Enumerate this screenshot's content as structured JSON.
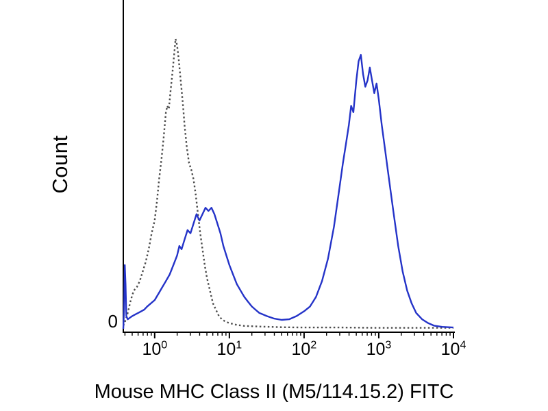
{
  "figure": {
    "background": "#ffffff",
    "axis_color": "#000000"
  },
  "chart_data": {
    "type": "line",
    "subtype": "flow-cytometry-histogram",
    "title": "",
    "xlabel": "Mouse MHC Class II (M5/114.15.2) FITC",
    "ylabel": "Count",
    "y_zero_label": "0",
    "x_scale": "log10",
    "x_range_log10": [
      -0.42,
      4.0
    ],
    "y_range": [
      0,
      100
    ],
    "grid": false,
    "legend": "none",
    "x_ticks": [
      {
        "base": "10",
        "exponent": "0",
        "log10": 0
      },
      {
        "base": "10",
        "exponent": "1",
        "log10": 1
      },
      {
        "base": "10",
        "exponent": "2",
        "log10": 2
      },
      {
        "base": "10",
        "exponent": "3",
        "log10": 3
      },
      {
        "base": "10",
        "exponent": "4",
        "log10": 4
      }
    ],
    "series": [
      {
        "name": "dotted-gray-curve",
        "color": "#4d4d4d",
        "line_style": "dotted",
        "points": [
          [
            -0.42,
            1
          ],
          [
            -0.4,
            2
          ],
          [
            -0.36,
            5
          ],
          [
            -0.32,
            9
          ],
          [
            -0.28,
            12
          ],
          [
            -0.24,
            13
          ],
          [
            -0.2,
            15
          ],
          [
            -0.16,
            18
          ],
          [
            -0.12,
            21
          ],
          [
            -0.08,
            25
          ],
          [
            -0.04,
            30
          ],
          [
            0.0,
            34
          ],
          [
            0.03,
            40
          ],
          [
            0.06,
            47
          ],
          [
            0.09,
            53
          ],
          [
            0.12,
            60
          ],
          [
            0.15,
            68
          ],
          [
            0.17,
            70
          ],
          [
            0.19,
            69
          ],
          [
            0.21,
            74
          ],
          [
            0.24,
            81
          ],
          [
            0.26,
            86
          ],
          [
            0.28,
            91
          ],
          [
            0.3,
            89
          ],
          [
            0.32,
            85
          ],
          [
            0.34,
            80
          ],
          [
            0.36,
            75
          ],
          [
            0.38,
            70
          ],
          [
            0.4,
            64
          ],
          [
            0.43,
            57
          ],
          [
            0.46,
            52
          ],
          [
            0.49,
            50
          ],
          [
            0.52,
            47
          ],
          [
            0.55,
            42
          ],
          [
            0.58,
            36
          ],
          [
            0.61,
            30
          ],
          [
            0.64,
            25
          ],
          [
            0.67,
            20
          ],
          [
            0.7,
            16
          ],
          [
            0.74,
            12
          ],
          [
            0.78,
            8
          ],
          [
            0.82,
            6
          ],
          [
            0.86,
            4
          ],
          [
            0.9,
            3
          ],
          [
            0.95,
            2.2
          ],
          [
            1.0,
            1.8
          ],
          [
            1.1,
            1.2
          ],
          [
            1.2,
            0.9
          ],
          [
            1.4,
            0.7
          ],
          [
            1.7,
            0.5
          ],
          [
            2.0,
            0.4
          ],
          [
            2.5,
            0.4
          ],
          [
            3.0,
            0.3
          ],
          [
            3.5,
            0.3
          ],
          [
            4.0,
            0.3
          ]
        ]
      },
      {
        "name": "solid-blue-curve",
        "color": "#2433c8",
        "line_style": "solid",
        "points": [
          [
            -0.42,
            0
          ],
          [
            -0.41,
            6
          ],
          [
            -0.4,
            20
          ],
          [
            -0.39,
            14
          ],
          [
            -0.38,
            4
          ],
          [
            -0.36,
            3
          ],
          [
            -0.33,
            3.5
          ],
          [
            -0.3,
            4
          ],
          [
            -0.26,
            4.5
          ],
          [
            -0.22,
            5
          ],
          [
            -0.18,
            5.5
          ],
          [
            -0.14,
            6
          ],
          [
            -0.1,
            7
          ],
          [
            -0.05,
            8
          ],
          [
            0.0,
            9
          ],
          [
            0.05,
            11
          ],
          [
            0.1,
            13
          ],
          [
            0.15,
            15
          ],
          [
            0.2,
            17
          ],
          [
            0.25,
            20
          ],
          [
            0.3,
            23
          ],
          [
            0.33,
            26
          ],
          [
            0.36,
            25
          ],
          [
            0.4,
            28
          ],
          [
            0.44,
            31
          ],
          [
            0.48,
            30
          ],
          [
            0.52,
            33
          ],
          [
            0.56,
            36
          ],
          [
            0.6,
            34
          ],
          [
            0.64,
            36
          ],
          [
            0.68,
            38
          ],
          [
            0.72,
            37
          ],
          [
            0.76,
            38
          ],
          [
            0.8,
            36
          ],
          [
            0.84,
            33
          ],
          [
            0.88,
            30
          ],
          [
            0.92,
            26
          ],
          [
            0.96,
            23
          ],
          [
            1.0,
            20
          ],
          [
            1.05,
            17
          ],
          [
            1.1,
            14
          ],
          [
            1.15,
            12
          ],
          [
            1.2,
            10
          ],
          [
            1.25,
            8.5
          ],
          [
            1.3,
            7
          ],
          [
            1.35,
            6
          ],
          [
            1.4,
            5
          ],
          [
            1.5,
            4
          ],
          [
            1.6,
            3.2
          ],
          [
            1.7,
            2.8
          ],
          [
            1.8,
            3
          ],
          [
            1.9,
            4
          ],
          [
            2.0,
            5.5
          ],
          [
            2.08,
            7
          ],
          [
            2.16,
            10
          ],
          [
            2.24,
            15
          ],
          [
            2.32,
            22
          ],
          [
            2.4,
            32
          ],
          [
            2.46,
            42
          ],
          [
            2.52,
            52
          ],
          [
            2.56,
            58
          ],
          [
            2.6,
            64
          ],
          [
            2.63,
            70
          ],
          [
            2.66,
            68
          ],
          [
            2.7,
            78
          ],
          [
            2.73,
            84
          ],
          [
            2.76,
            86
          ],
          [
            2.79,
            80
          ],
          [
            2.82,
            76
          ],
          [
            2.85,
            78
          ],
          [
            2.88,
            82
          ],
          [
            2.91,
            78
          ],
          [
            2.94,
            74
          ],
          [
            2.97,
            77
          ],
          [
            3.0,
            72
          ],
          [
            3.04,
            64
          ],
          [
            3.08,
            57
          ],
          [
            3.12,
            50
          ],
          [
            3.16,
            43
          ],
          [
            3.2,
            36
          ],
          [
            3.26,
            26
          ],
          [
            3.32,
            18
          ],
          [
            3.38,
            12
          ],
          [
            3.44,
            8
          ],
          [
            3.5,
            5
          ],
          [
            3.58,
            3
          ],
          [
            3.66,
            1.8
          ],
          [
            3.74,
            1
          ],
          [
            3.85,
            0.6
          ],
          [
            4.0,
            0.4
          ]
        ]
      }
    ]
  }
}
